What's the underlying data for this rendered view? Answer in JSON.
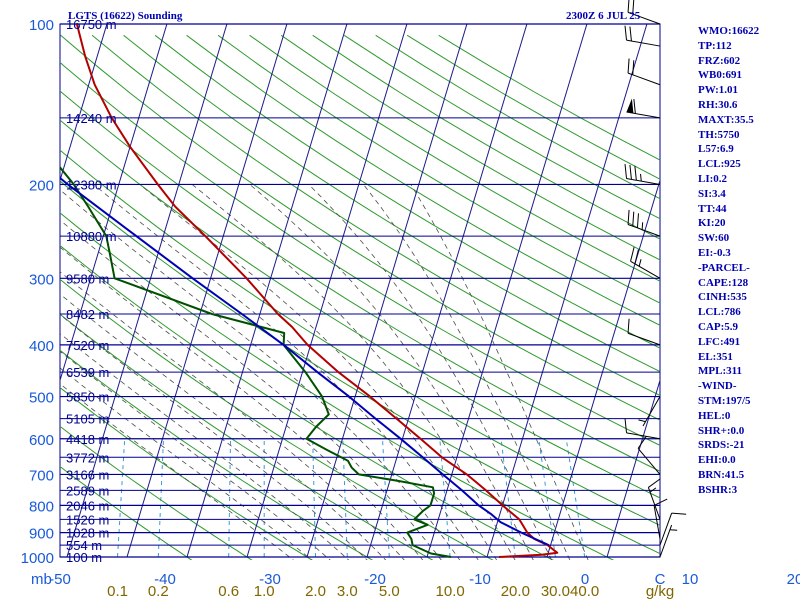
{
  "header": {
    "station": "LGTS (16622) Sounding",
    "time": "2300Z  6 JUL 25"
  },
  "stats": [
    "WMO:16622",
    "TP:112",
    "FRZ:602",
    "WB0:691",
    "PW:1.01",
    "RH:30.6",
    "MAXT:35.5",
    "TH:5750",
    "L57:6.9",
    "LCL:925",
    "LI:0.2",
    "SI:3.4",
    "TT:44",
    "KI:20",
    "SW:60",
    "EI:-0.3",
    "-PARCEL-",
    "CAPE:128",
    "CINH:535",
    "LCL:786",
    "CAP:5.9",
    "LFC:491",
    "EL:351",
    "MPL:311",
    "-WIND-",
    "STM:197/5",
    "HEL:0",
    "SHR+:0.0",
    "SRDS:-21",
    "EHI:0.0",
    "BRN:41.5",
    "BSHR:3"
  ],
  "colors": {
    "isobar": "#000090",
    "isotherm": "#1a1a8c",
    "dry_adiabat": "#2e9a2e",
    "moist_adiabat": "#4d4d4d",
    "mixing_ratio": "#3a9ad9",
    "temperature": "#b40000",
    "dewpoint": "#005000",
    "parcel": "#0000b4",
    "pressure_labels": "#1a5ad9",
    "height_labels": "#000090",
    "temp_labels": "#1a5ad9",
    "mixing_labels": "#806600",
    "wind_barbs": "#000000"
  },
  "chart_data": {
    "type": "line",
    "title": "LGTS (16622) Sounding",
    "xlabel": "C",
    "ylabel": "mb",
    "ylim": [
      1000,
      100
    ],
    "xlim": [
      -50,
      50
    ],
    "y_scale": "log",
    "pressure_levels": [
      100,
      200,
      300,
      400,
      500,
      600,
      700,
      800,
      900,
      1000
    ],
    "y_tick_labels": [
      "100",
      "200",
      "300",
      "400",
      "500",
      "600",
      "700",
      "800",
      "900",
      "1000"
    ],
    "x_ticks": [
      -50,
      -40,
      -30,
      -20,
      -10,
      0,
      10,
      20,
      30,
      40
    ],
    "x_tick_labels": [
      "-50",
      "-40",
      "-30",
      "-20",
      "-10",
      "0",
      "10",
      "20",
      "30",
      "40"
    ],
    "mixing_ratio_ticks": [
      0.1,
      0.2,
      0.6,
      1.0,
      2.0,
      3.0,
      5.0,
      10.0,
      20.0,
      30.0,
      40.0
    ],
    "mixing_ratio_tick_labels": [
      "0.1",
      "0.2",
      "0.6",
      "1.0",
      "2.0",
      "3.0",
      "5.0",
      "10.0",
      "20.0",
      "30.0",
      "40.0"
    ],
    "mixing_ratio_unit": "g/kg",
    "y_axis_unit": "mb",
    "x_axis_unit": "C",
    "heights": [
      {
        "p": 100,
        "label": "16750 m"
      },
      {
        "p": 150,
        "label": "14240 m"
      },
      {
        "p": 200,
        "label": "12380 m"
      },
      {
        "p": 250,
        "label": "10880 m"
      },
      {
        "p": 300,
        "label": "9580 m"
      },
      {
        "p": 350,
        "label": "8482 m"
      },
      {
        "p": 400,
        "label": "7520 m"
      },
      {
        "p": 450,
        "label": "6539 m"
      },
      {
        "p": 500,
        "label": "5850 m"
      },
      {
        "p": 550,
        "label": "5105 m"
      },
      {
        "p": 600,
        "label": "4418 m"
      },
      {
        "p": 650,
        "label": "3772 m"
      },
      {
        "p": 700,
        "label": "3166 m"
      },
      {
        "p": 750,
        "label": "2589 m"
      },
      {
        "p": 800,
        "label": "2046 m"
      },
      {
        "p": 850,
        "label": "1526 m"
      },
      {
        "p": 900,
        "label": "1028 m"
      },
      {
        "p": 950,
        "label": "554 m"
      },
      {
        "p": 1000,
        "label": "100 m"
      }
    ],
    "series": [
      {
        "key": "temperature",
        "points": [
          [
            1000,
            22.0
          ],
          [
            990,
            29.0
          ],
          [
            982,
            31.5
          ],
          [
            950,
            29.5
          ],
          [
            925,
            27.0
          ],
          [
            900,
            25.5
          ],
          [
            850,
            23.5
          ],
          [
            800,
            20.0
          ],
          [
            750,
            16.5
          ],
          [
            700,
            12.5
          ],
          [
            650,
            7.5
          ],
          [
            600,
            3.0
          ],
          [
            550,
            -2.0
          ],
          [
            500,
            -7.5
          ],
          [
            450,
            -14.0
          ],
          [
            400,
            -20.5
          ],
          [
            370,
            -24.0
          ],
          [
            350,
            -27.0
          ],
          [
            300,
            -34.0
          ],
          [
            250,
            -43.0
          ],
          [
            220,
            -49.5
          ],
          [
            200,
            -53.5
          ],
          [
            170,
            -60.0
          ],
          [
            150,
            -64.5
          ],
          [
            130,
            -69.0
          ],
          [
            115,
            -72.0
          ],
          [
            100,
            -75.0
          ]
        ]
      },
      {
        "key": "dewpoint",
        "points": [
          [
            1000,
            14.0
          ],
          [
            985,
            10.5
          ],
          [
            950,
            7.0
          ],
          [
            925,
            6.5
          ],
          [
            900,
            5.5
          ],
          [
            870,
            8.5
          ],
          [
            850,
            6.0
          ],
          [
            820,
            7.0
          ],
          [
            800,
            8.0
          ],
          [
            760,
            8.0
          ],
          [
            740,
            7.5
          ],
          [
            720,
            1.5
          ],
          [
            700,
            -5.5
          ],
          [
            680,
            -7.0
          ],
          [
            660,
            -8.0
          ],
          [
            630,
            -12.0
          ],
          [
            600,
            -16.0
          ],
          [
            570,
            -15.0
          ],
          [
            540,
            -13.5
          ],
          [
            500,
            -15.5
          ],
          [
            450,
            -19.5
          ],
          [
            400,
            -24.5
          ],
          [
            380,
            -25.0
          ],
          [
            350,
            -38.0
          ],
          [
            300,
            -56.0
          ],
          [
            270,
            -58.0
          ],
          [
            250,
            -59.5
          ],
          [
            220,
            -64.0
          ],
          [
            200,
            -67.5
          ],
          [
            180,
            -72.0
          ],
          [
            150,
            -80.0
          ],
          [
            130,
            -84.0
          ],
          [
            110,
            -87.0
          ],
          [
            100,
            -90.0
          ]
        ]
      },
      {
        "key": "parcel",
        "points": [
          [
            950,
            29.7
          ],
          [
            900,
            24.5
          ],
          [
            860,
            20.5
          ],
          [
            830,
            18.5
          ],
          [
            800,
            16.0
          ],
          [
            750,
            12.5
          ],
          [
            700,
            8.5
          ],
          [
            650,
            4.3
          ],
          [
            600,
            -0.3
          ],
          [
            550,
            -5.5
          ],
          [
            500,
            -11.0
          ],
          [
            450,
            -17.5
          ],
          [
            400,
            -24.5
          ],
          [
            350,
            -33.0
          ],
          [
            300,
            -43.0
          ],
          [
            250,
            -54.5
          ],
          [
            200,
            -68.5
          ],
          [
            170,
            -78.0
          ],
          [
            150,
            -84.0
          ],
          [
            130,
            -89.0
          ]
        ]
      }
    ]
  },
  "winds": [
    {
      "p": 1000,
      "dir": 20,
      "spd": 5
    },
    {
      "p": 950,
      "dir": 20,
      "spd": 10
    },
    {
      "p": 925,
      "dir": 350,
      "spd": 10
    },
    {
      "p": 850,
      "dir": 340,
      "spd": 15
    },
    {
      "p": 700,
      "dir": 320,
      "spd": 10
    },
    {
      "p": 600,
      "dir": 280,
      "spd": 10
    },
    {
      "p": 500,
      "dir": 210,
      "spd": 5
    },
    {
      "p": 400,
      "dir": 290,
      "spd": 10
    },
    {
      "p": 300,
      "dir": 300,
      "spd": 25
    },
    {
      "p": 250,
      "dir": 290,
      "spd": 35
    },
    {
      "p": 200,
      "dir": 280,
      "spd": 35
    },
    {
      "p": 150,
      "dir": 280,
      "spd": 60
    },
    {
      "p": 130,
      "dir": 290,
      "spd": 20
    },
    {
      "p": 110,
      "dir": 280,
      "spd": 20
    },
    {
      "p": 100,
      "dir": 290,
      "spd": 20
    }
  ]
}
